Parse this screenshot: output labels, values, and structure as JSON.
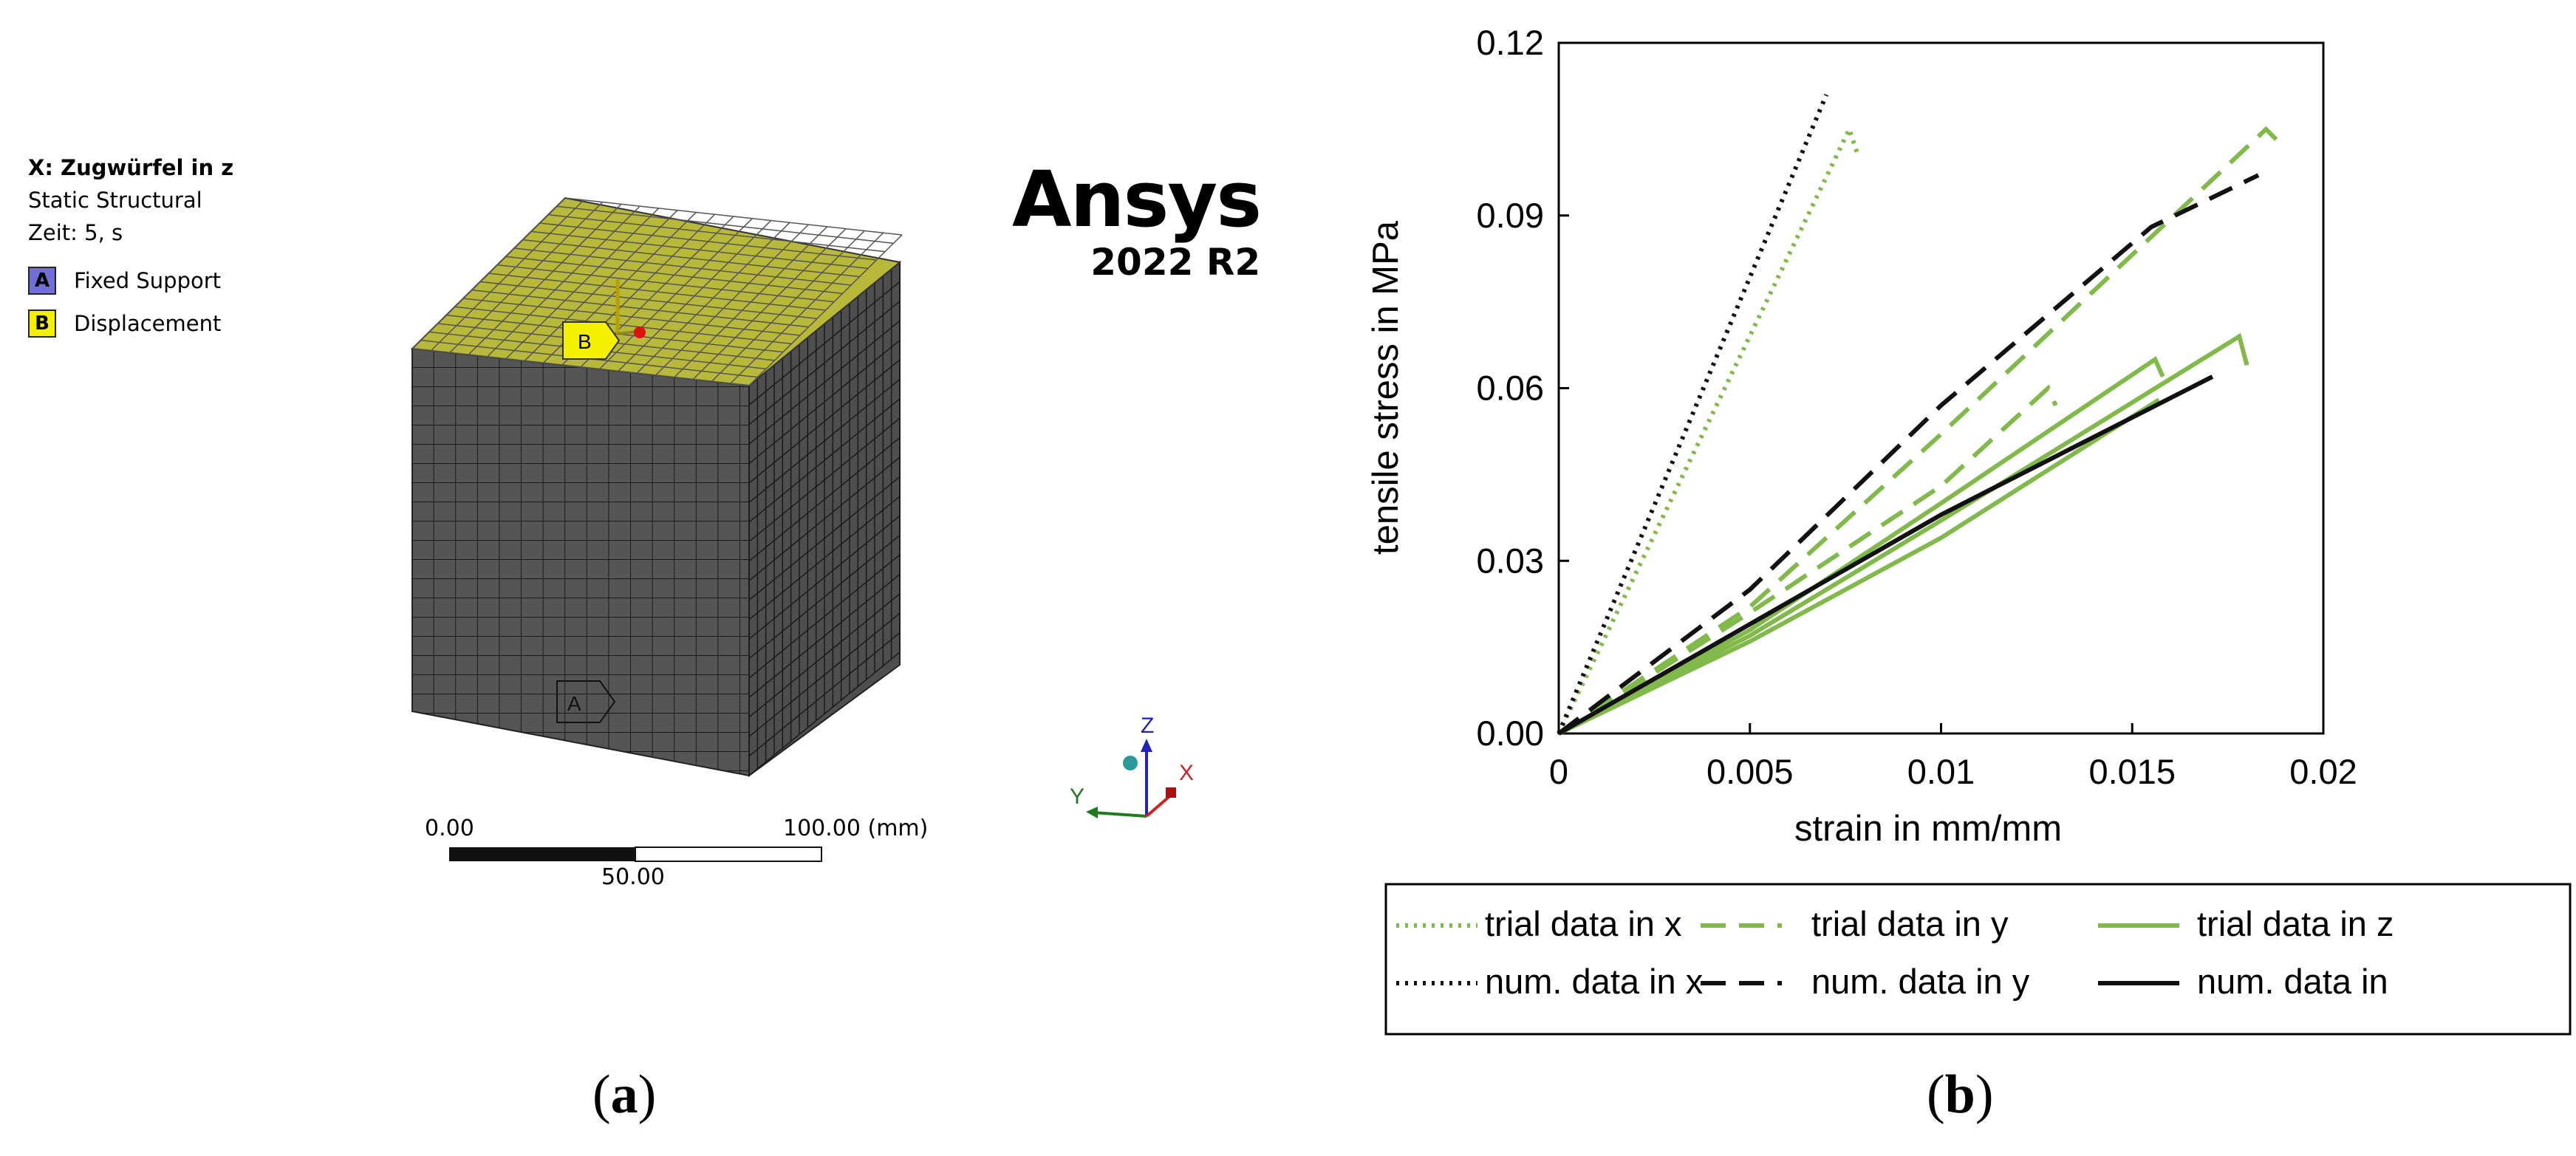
{
  "panel_a": {
    "caption_letter": "a",
    "legend": {
      "title": "X: Zugwürfel in z",
      "analysis": "Static Structural",
      "time": "Zeit: 5, s",
      "items": [
        {
          "badge": "A",
          "label": "Fixed Support",
          "color": "#6f6fd6"
        },
        {
          "badge": "B",
          "label": "Displacement",
          "color": "#f2f000"
        }
      ]
    },
    "brand": {
      "name": "Ansys",
      "version": "2022 R2"
    },
    "markers": {
      "support": "A",
      "displacement": "B"
    },
    "scale": {
      "start": "0.00",
      "end": "100.00 (mm)",
      "mid": "50.00"
    },
    "triad": {
      "x": "X",
      "y": "Y",
      "z": "Z"
    },
    "colors": {
      "mesh_face": "#555555",
      "mesh_line": "#1a1a1a",
      "top_face": "#b8b83a",
      "axis_x": "#cc2222",
      "axis_y": "#1f7a1f",
      "axis_z": "#2222bb"
    }
  },
  "panel_b": {
    "caption_letter": "b",
    "chart_data": {
      "type": "line",
      "title": "",
      "xlabel": "strain in mm/mm",
      "ylabel": "tensile stress in MPa",
      "xlim": [
        0,
        0.02
      ],
      "ylim": [
        0,
        0.12
      ],
      "xticks": [
        0,
        0.005,
        0.01,
        0.015,
        0.02
      ],
      "xtick_labels": [
        "0",
        "0.005",
        "0.01",
        "0.015",
        "0.02"
      ],
      "yticks": [
        0,
        0.03,
        0.06,
        0.09,
        0.12
      ],
      "ytick_labels": [
        "0.00",
        "0.03",
        "0.06",
        "0.09",
        "0.12"
      ],
      "grid": false,
      "series": [
        {
          "name": "trial data in x",
          "color": "#82b94b",
          "style": "dotted",
          "x": [
            0,
            0.0076,
            0.0078
          ],
          "y": [
            0,
            0.105,
            0.101
          ]
        },
        {
          "name": "trial data in y",
          "color": "#82b94b",
          "style": "dashed",
          "x": [
            0,
            0.005,
            0.01,
            0.0185,
            0.0188
          ],
          "y": [
            0,
            0.022,
            0.052,
            0.105,
            0.103
          ]
        },
        {
          "name": "trial data in y",
          "color": "#82b94b",
          "style": "dashed",
          "x": [
            0,
            0.005,
            0.01,
            0.0128,
            0.013
          ],
          "y": [
            0,
            0.021,
            0.043,
            0.06,
            0.057
          ]
        },
        {
          "name": "trial data in z",
          "color": "#82b94b",
          "style": "solid",
          "x": [
            0,
            0.005,
            0.01,
            0.0178,
            0.018
          ],
          "y": [
            0,
            0.017,
            0.037,
            0.069,
            0.064
          ]
        },
        {
          "name": "trial data in z",
          "color": "#82b94b",
          "style": "solid",
          "x": [
            0,
            0.005,
            0.01,
            0.0156,
            0.0158
          ],
          "y": [
            0,
            0.018,
            0.04,
            0.065,
            0.062
          ]
        },
        {
          "name": "trial data in z",
          "color": "#82b94b",
          "style": "solid",
          "x": [
            0,
            0.005,
            0.01,
            0.0157
          ],
          "y": [
            0,
            0.016,
            0.034,
            0.058
          ]
        },
        {
          "name": "num. data in x",
          "color": "#111111",
          "style": "dotted",
          "x": [
            0,
            0.007
          ],
          "y": [
            0,
            0.111
          ]
        },
        {
          "name": "num. data in y",
          "color": "#111111",
          "style": "dashed",
          "x": [
            0,
            0.005,
            0.01,
            0.0155,
            0.0183
          ],
          "y": [
            0,
            0.025,
            0.057,
            0.088,
            0.097
          ]
        },
        {
          "name": "num. data in",
          "color": "#111111",
          "style": "solid",
          "x": [
            0,
            0.005,
            0.01,
            0.0171
          ],
          "y": [
            0,
            0.019,
            0.038,
            0.062
          ]
        }
      ],
      "legend": [
        {
          "label": "trial data in x",
          "color": "#82b94b",
          "style": "dotted"
        },
        {
          "label": "trial data in y",
          "color": "#82b94b",
          "style": "dashed"
        },
        {
          "label": "trial data in z",
          "color": "#82b94b",
          "style": "solid"
        },
        {
          "label": "num. data in x",
          "color": "#111111",
          "style": "dotted"
        },
        {
          "label": "num. data in y",
          "color": "#111111",
          "style": "dashed"
        },
        {
          "label": "num. data in",
          "color": "#111111",
          "style": "solid"
        }
      ]
    }
  }
}
